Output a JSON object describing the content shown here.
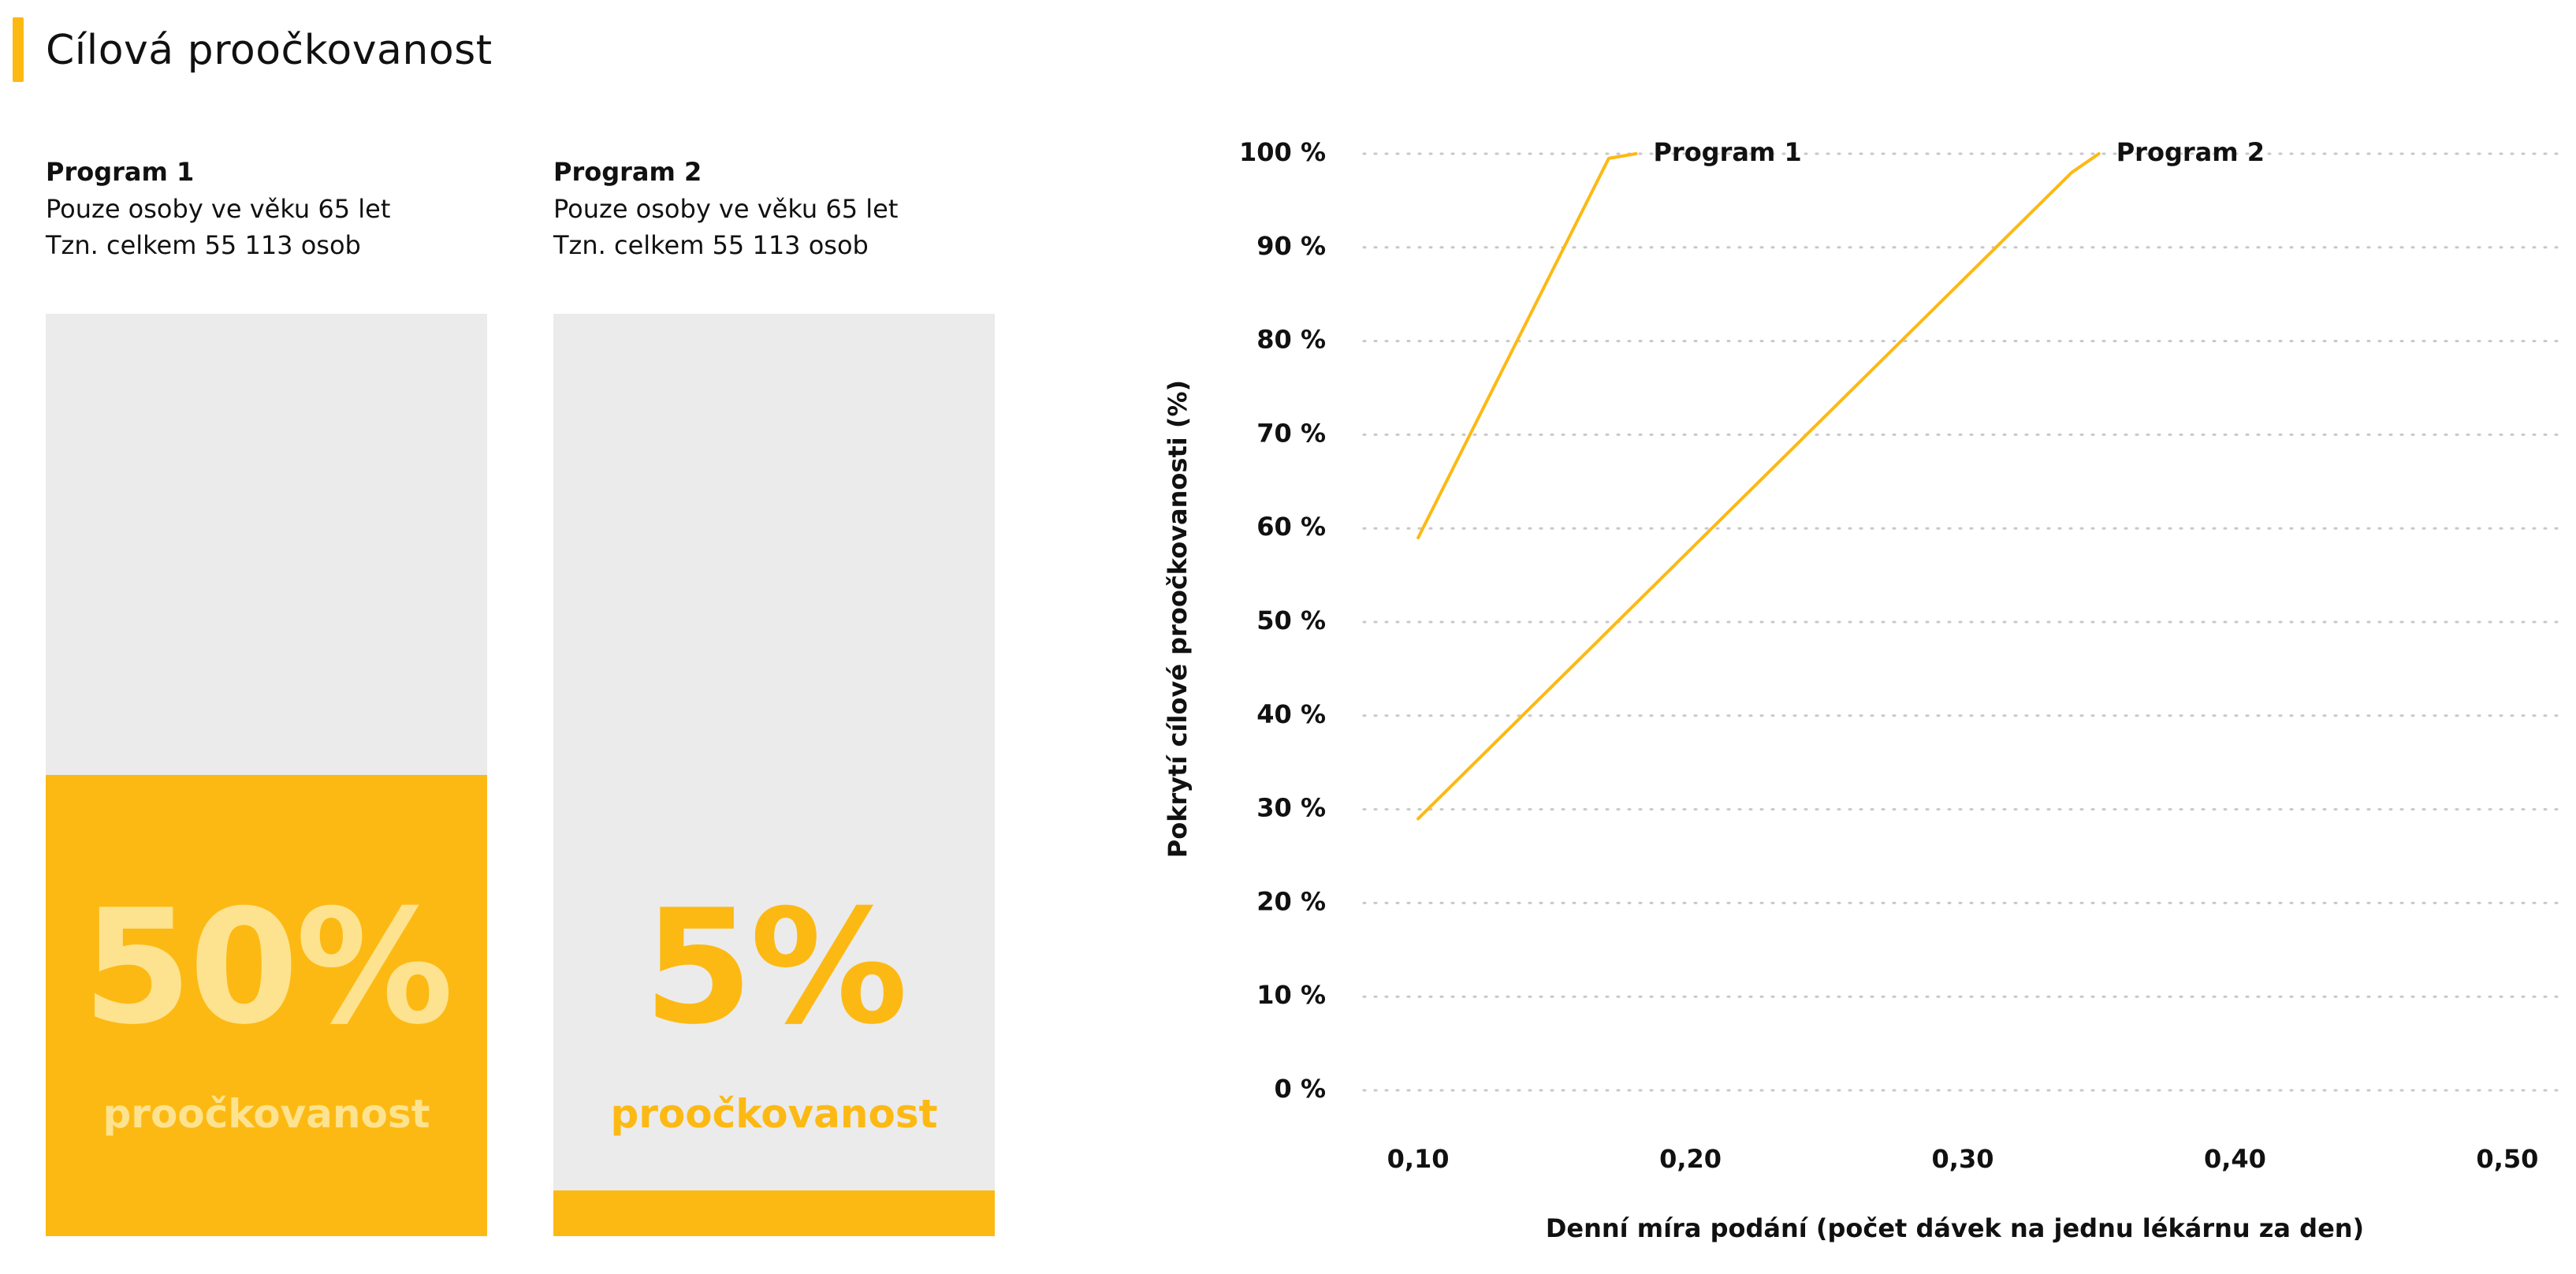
{
  "page": {
    "title": "Cílová proočkovanost"
  },
  "programs": [
    {
      "name": "Program 1",
      "desc_line1": "Pouze osoby ve věku 65 let",
      "desc_line2": "Tzn. celkem 55 113 osob",
      "coverage_fraction": 0.5,
      "value_text": "50%",
      "value_label": "proočkovanost"
    },
    {
      "name": "Program 2",
      "desc_line1": "Pouze osoby ve věku 65 let",
      "desc_line2": "Tzn. celkem 55 113 osob",
      "coverage_fraction": 0.05,
      "value_text": "5%",
      "value_label": "proočkovanost"
    }
  ],
  "colors": {
    "accent": "#FDB913",
    "accent_light": "#FDE38F",
    "bar_background": "#EBEBEB",
    "grid": "#C8C8C8"
  },
  "chart_data": {
    "type": "line",
    "xlabel": "Denní míra podání (počet dávek na jednu lékárnu za den)",
    "ylabel": "Pokrytí cílové proočkovanosti (%)",
    "xlim": [
      0.08,
      0.52
    ],
    "ylim": [
      0,
      100
    ],
    "x_ticks": [
      0.1,
      0.2,
      0.3,
      0.4,
      0.5
    ],
    "x_tick_labels": [
      "0,10",
      "0,20",
      "0,30",
      "0,40",
      "0,50"
    ],
    "y_ticks": [
      0,
      10,
      20,
      30,
      40,
      50,
      60,
      70,
      80,
      90,
      100
    ],
    "y_tick_labels": [
      "0 %",
      "10 %",
      "20 %",
      "30 %",
      "40 %",
      "50 %",
      "60 %",
      "70 %",
      "80 %",
      "90 %",
      "100 %"
    ],
    "grid": "horizontal-dotted",
    "series_labels": "at line end",
    "series": [
      {
        "name": "Program 1",
        "color": "#FDB913",
        "points": [
          [
            0.1,
            59
          ],
          [
            0.17,
            99.5
          ],
          [
            0.18,
            100
          ]
        ]
      },
      {
        "name": "Program 2",
        "color": "#FDB913",
        "points": [
          [
            0.1,
            29
          ],
          [
            0.34,
            98
          ],
          [
            0.35,
            100
          ]
        ]
      }
    ]
  }
}
